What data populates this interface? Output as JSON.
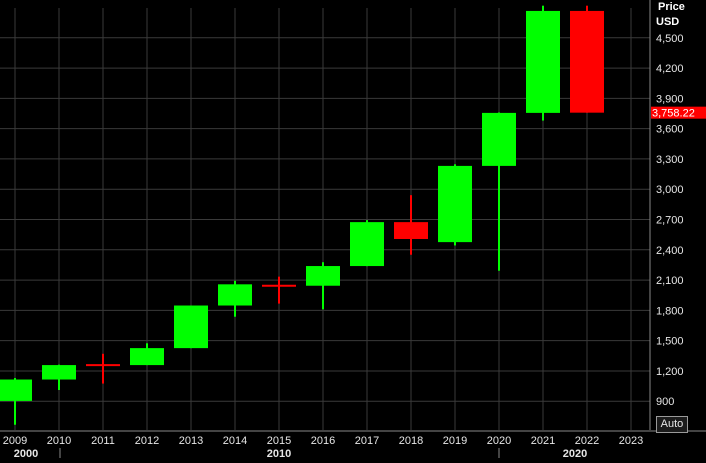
{
  "chart_data": {
    "type": "candlestick",
    "y_axis_title": "Price",
    "y_axis_unit": "USD",
    "y_ticks": [
      "900",
      "1,200",
      "1,500",
      "1,800",
      "2,100",
      "2,400",
      "2,700",
      "3,000",
      "3,300",
      "3,600",
      "3,900",
      "4,200",
      "4,500"
    ],
    "ylim": [
      615,
      4795
    ],
    "x_ticks": [
      "2009",
      "2010",
      "2011",
      "2012",
      "2013",
      "2014",
      "2015",
      "2016",
      "2017",
      "2018",
      "2019",
      "2020",
      "2021",
      "2022",
      "2023"
    ],
    "decade_labels": [
      "2000",
      "2010",
      "2020"
    ],
    "last_price_label": "3,758.22",
    "auto_label": "Auto",
    "grid": true,
    "candles": [
      {
        "year": "2009",
        "open": 903,
        "high": 1130,
        "low": 667,
        "close": 1115,
        "direction": "up"
      },
      {
        "year": "2010",
        "open": 1115,
        "high": 1262,
        "low": 1011,
        "close": 1258,
        "direction": "up"
      },
      {
        "year": "2011",
        "open": 1258,
        "high": 1370,
        "low": 1075,
        "close": 1258,
        "direction": "doji"
      },
      {
        "year": "2012",
        "open": 1258,
        "high": 1474,
        "low": 1258,
        "close": 1426,
        "direction": "up"
      },
      {
        "year": "2013",
        "open": 1426,
        "high": 1848,
        "low": 1426,
        "close": 1848,
        "direction": "up"
      },
      {
        "year": "2014",
        "open": 1848,
        "high": 2093,
        "low": 1737,
        "close": 2058,
        "direction": "up"
      },
      {
        "year": "2015",
        "open": 2058,
        "high": 2134,
        "low": 1867,
        "close": 2044,
        "direction": "down"
      },
      {
        "year": "2016",
        "open": 2044,
        "high": 2277,
        "low": 1810,
        "close": 2239,
        "direction": "up"
      },
      {
        "year": "2017",
        "open": 2239,
        "high": 2694,
        "low": 2238,
        "close": 2674,
        "direction": "up"
      },
      {
        "year": "2018",
        "open": 2674,
        "high": 2941,
        "low": 2351,
        "close": 2507,
        "direction": "down"
      },
      {
        "year": "2019",
        "open": 2476,
        "high": 3247,
        "low": 2443,
        "close": 3231,
        "direction": "up"
      },
      {
        "year": "2020",
        "open": 3231,
        "high": 3760,
        "low": 2192,
        "close": 3756,
        "direction": "up"
      },
      {
        "year": "2021",
        "open": 3756,
        "high": 4818,
        "low": 3680,
        "close": 4766,
        "direction": "up"
      },
      {
        "year": "2022",
        "open": 4766,
        "high": 4818,
        "low": 3758.22,
        "close": 3758.22,
        "direction": "down"
      }
    ],
    "colors": {
      "up": "#00ff00",
      "down": "#ff0000",
      "background": "#000000",
      "grid": "#3a3a3a",
      "axis": "#888888",
      "text": "#e6e6e6",
      "last_price_bg": "#ff0000",
      "last_price_text": "#ffffff"
    }
  }
}
